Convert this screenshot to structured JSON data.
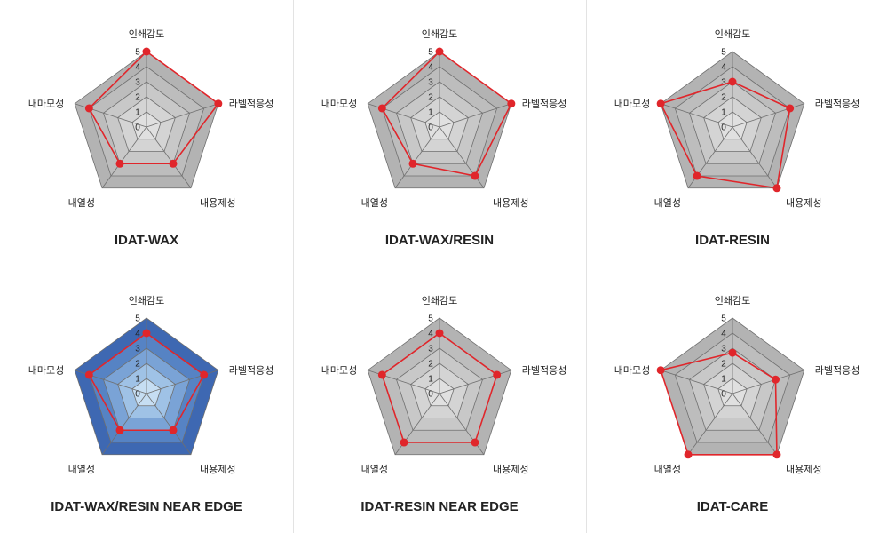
{
  "colors": {
    "series_line": "#e0262b",
    "grid_stroke": "#6f6f6f",
    "gray_rings": [
      "#b3b3b3",
      "#bdbdbd",
      "#c8c8c8",
      "#d4d4d4",
      "#e0e0e0"
    ],
    "blue_rings": [
      "#3e68b2",
      "#5683c4",
      "#7aa3d6",
      "#9fc2e6",
      "#c6def3"
    ]
  },
  "chart_data": [
    {
      "type": "radar",
      "title": "IDAT-WAX",
      "axes": [
        "인쇄감도",
        "라벨적응성",
        "내용제성",
        "내열성",
        "내마모성"
      ],
      "ticks": [
        "0",
        "1",
        "2",
        "3",
        "4",
        "5"
      ],
      "rlim": [
        0,
        5
      ],
      "fill_scheme": "gray",
      "values": [
        5,
        5,
        3,
        3,
        4
      ]
    },
    {
      "type": "radar",
      "title": "IDAT-WAX/RESIN",
      "axes": [
        "인쇄감도",
        "라벨적응성",
        "내용제성",
        "내열성",
        "내마모성"
      ],
      "ticks": [
        "0",
        "1",
        "2",
        "3",
        "4",
        "5"
      ],
      "rlim": [
        0,
        5
      ],
      "fill_scheme": "gray",
      "values": [
        5,
        5,
        4,
        3,
        4
      ]
    },
    {
      "type": "radar",
      "title": "IDAT-RESIN",
      "axes": [
        "인쇄감도",
        "라벨적응성",
        "내용제성",
        "내열성",
        "내마모성"
      ],
      "ticks": [
        "0",
        "1",
        "2",
        "3",
        "4",
        "5"
      ],
      "rlim": [
        0,
        5
      ],
      "fill_scheme": "gray",
      "values": [
        3,
        4,
        5,
        4,
        5
      ]
    },
    {
      "type": "radar",
      "title": "IDAT-WAX/RESIN NEAR EDGE",
      "axes": [
        "인쇄감도",
        "라벨적응성",
        "내용제성",
        "내열성",
        "내마모성"
      ],
      "ticks": [
        "0",
        "1",
        "2",
        "3",
        "4",
        "5"
      ],
      "rlim": [
        0,
        5
      ],
      "fill_scheme": "blue",
      "values": [
        4,
        4,
        3,
        3,
        4
      ]
    },
    {
      "type": "radar",
      "title": "IDAT-RESIN NEAR EDGE",
      "axes": [
        "인쇄감도",
        "라벨적응성",
        "내용제성",
        "내열성",
        "내마모성"
      ],
      "ticks": [
        "0",
        "1",
        "2",
        "3",
        "4",
        "5"
      ],
      "rlim": [
        0,
        5
      ],
      "fill_scheme": "gray",
      "values": [
        4,
        4,
        4,
        4,
        4
      ]
    },
    {
      "type": "radar",
      "title": "IDAT-CARE",
      "axes": [
        "인쇄감도",
        "라벨적응성",
        "내용제성",
        "내열성",
        "내마모성"
      ],
      "ticks": [
        "0",
        "1",
        "2",
        "3",
        "4",
        "5"
      ],
      "rlim": [
        0,
        5
      ],
      "fill_scheme": "gray",
      "values": [
        2.7,
        3,
        5,
        5,
        5
      ]
    }
  ]
}
